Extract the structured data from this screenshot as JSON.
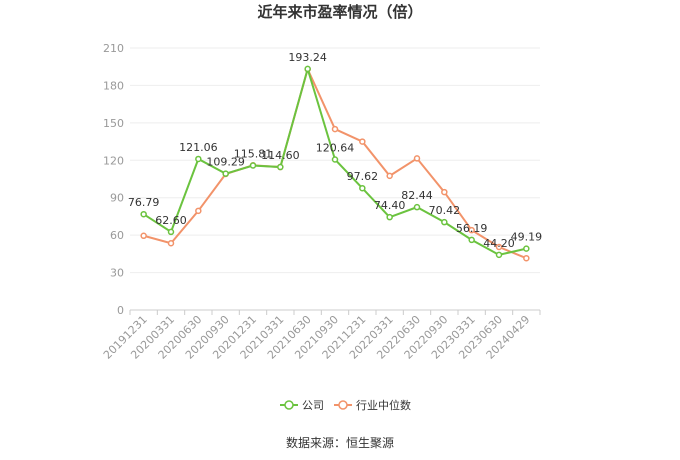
{
  "chart_data": {
    "type": "line",
    "title": "近年来市盈率情况（倍）",
    "xlabel": "",
    "ylabel": "",
    "ylim": [
      0,
      210
    ],
    "yticks": [
      0,
      30,
      60,
      90,
      120,
      150,
      180,
      210
    ],
    "grid": true,
    "legend_position": "bottom",
    "categories": [
      "20191231",
      "20200331",
      "20200630",
      "20200930",
      "20201231",
      "20210331",
      "20210630",
      "20210930",
      "20211231",
      "20220331",
      "20220630",
      "20220930",
      "20230331",
      "20230630",
      "20240429"
    ],
    "series": [
      {
        "name": "公司",
        "color": "#6bc33f",
        "values": [
          76.79,
          62.6,
          121.06,
          109.29,
          115.81,
          114.6,
          193.24,
          120.64,
          97.62,
          74.4,
          82.44,
          70.42,
          56.19,
          44.2,
          49.19
        ],
        "labels": [
          "76.79",
          "62.60",
          "121.06",
          "109.29",
          "115.81",
          "114.60",
          "193.24",
          "120.64",
          "97.62",
          "74.40",
          "82.44",
          "70.42",
          "56.19",
          "44.20",
          "49.19"
        ]
      },
      {
        "name": "行业中位数",
        "color": "#f2936a",
        "values": [
          59.5,
          53.5,
          79.5,
          109.0,
          116.0,
          114.6,
          193.0,
          145.0,
          135.0,
          107.5,
          121.5,
          94.5,
          64.0,
          50.5,
          41.5
        ]
      }
    ]
  },
  "source_text": "数据来源：恒生聚源"
}
